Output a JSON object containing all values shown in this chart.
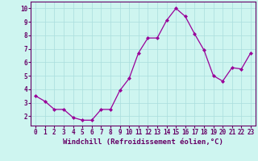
{
  "x": [
    0,
    1,
    2,
    3,
    4,
    5,
    6,
    7,
    8,
    9,
    10,
    11,
    12,
    13,
    14,
    15,
    16,
    17,
    18,
    19,
    20,
    21,
    22,
    23
  ],
  "y": [
    3.5,
    3.1,
    2.5,
    2.5,
    1.9,
    1.7,
    1.7,
    2.5,
    2.5,
    3.9,
    4.8,
    6.7,
    7.8,
    7.8,
    9.1,
    10.0,
    9.4,
    8.1,
    6.9,
    5.0,
    4.6,
    5.6,
    5.5,
    6.7
  ],
  "line_color": "#990099",
  "marker": "D",
  "marker_size": 2.0,
  "line_width": 0.9,
  "bg_color": "#cef5f0",
  "grid_color": "#aadddd",
  "xlabel": "Windchill (Refroidissement éolien,°C)",
  "xlabel_fontsize": 6.5,
  "tick_fontsize": 5.5,
  "xlim": [
    -0.5,
    23.5
  ],
  "ylim": [
    1.3,
    10.5
  ],
  "yticks": [
    2,
    3,
    4,
    5,
    6,
    7,
    8,
    9,
    10
  ],
  "xticks": [
    0,
    1,
    2,
    3,
    4,
    5,
    6,
    7,
    8,
    9,
    10,
    11,
    12,
    13,
    14,
    15,
    16,
    17,
    18,
    19,
    20,
    21,
    22,
    23
  ],
  "text_color": "#660066",
  "spine_color": "#660066"
}
